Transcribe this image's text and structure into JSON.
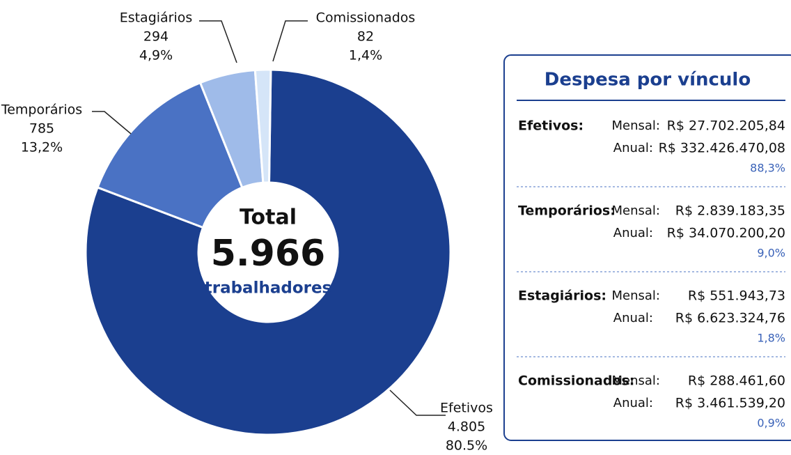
{
  "chart_data": {
    "type": "pie",
    "categories": [
      "Efetivos",
      "Temporários",
      "Estagiários",
      "Comissionados"
    ],
    "values": [
      4805,
      785,
      294,
      82
    ],
    "value_labels": [
      "4.805",
      "785",
      "294",
      "82"
    ],
    "percents": [
      80.5,
      13.2,
      4.9,
      1.4
    ],
    "percent_labels": [
      "80.5%",
      "13,2%",
      "4,9%",
      "1,4%"
    ],
    "colors": [
      "#1b3f8f",
      "#4a72c4",
      "#9fbbe9",
      "#d5e5f8"
    ],
    "center": {
      "title": "Total",
      "value": "5.966",
      "subtitle": "trabalhadores"
    }
  },
  "expense_table": {
    "title": "Despesa por vínculo",
    "rows": [
      {
        "name": "Efetivos:",
        "monthly_label": "Mensal:",
        "monthly": "R$ 27.702.205,84",
        "annual_label": "Anual:",
        "annual": "R$ 332.426.470,08",
        "share": "88,3%"
      },
      {
        "name": "Temporários:",
        "monthly_label": "Mensal:",
        "monthly": "R$ 2.839.183,35",
        "annual_label": "Anual:",
        "annual": "R$ 34.070.200,20",
        "share": "9,0%"
      },
      {
        "name": "Estagiários:",
        "monthly_label": "Mensal:",
        "monthly": "R$ 551.943,73",
        "annual_label": "Anual:",
        "annual": "R$ 6.623.324,76",
        "share": "1,8%"
      },
      {
        "name": "Comissionados:",
        "monthly_label": "Mensal:",
        "monthly": "R$ 288.461,60",
        "annual_label": "Anual:",
        "annual": "R$ 3.461.539,20",
        "share": "0,9%"
      }
    ]
  }
}
